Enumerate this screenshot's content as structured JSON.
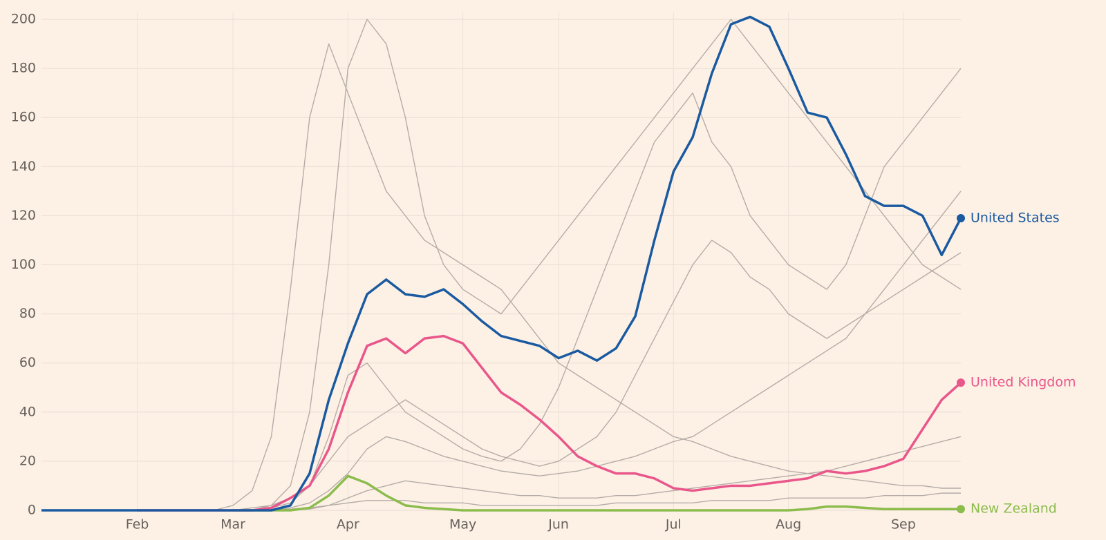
{
  "chart_data": {
    "type": "line",
    "categories": [
      null,
      null,
      null,
      null,
      null,
      "Feb",
      null,
      null,
      null,
      null,
      "Mar",
      null,
      null,
      null,
      null,
      null,
      "Apr",
      null,
      null,
      null,
      null,
      null,
      "May",
      null,
      null,
      null,
      null,
      "Jun",
      null,
      null,
      null,
      null,
      null,
      "Jul",
      null,
      null,
      null,
      null,
      null,
      "Aug",
      null,
      null,
      null,
      null,
      null,
      "Sep",
      null,
      null,
      null
    ],
    "ylim": [
      0,
      200
    ],
    "yticks": [
      0,
      20,
      40,
      60,
      80,
      100,
      120,
      140,
      160,
      180,
      200
    ],
    "grid": true,
    "series": [
      {
        "color": "#b5aca7",
        "values": [
          0,
          0,
          0,
          0,
          0,
          0,
          0,
          0,
          0,
          0,
          2,
          8,
          30,
          90,
          160,
          190,
          170,
          150,
          130,
          120,
          110,
          105,
          100,
          95,
          90,
          80,
          70,
          60,
          55,
          50,
          45,
          40,
          35,
          30,
          28,
          25,
          22,
          20,
          18,
          16,
          15,
          14,
          13,
          12,
          11,
          10,
          10,
          9,
          9
        ]
      },
      {
        "color": "#b5aca7",
        "values": [
          0,
          0,
          0,
          0,
          0,
          0,
          0,
          0,
          0,
          0,
          0,
          0,
          1,
          3,
          10,
          30,
          55,
          60,
          50,
          40,
          35,
          30,
          25,
          22,
          20,
          25,
          35,
          50,
          70,
          90,
          110,
          130,
          150,
          160,
          170,
          150,
          140,
          120,
          110,
          100,
          95,
          90,
          100,
          120,
          140,
          150,
          160,
          170,
          180
        ]
      },
      {
        "color": "#b5aca7",
        "values": [
          0,
          0,
          0,
          0,
          0,
          0,
          0,
          0,
          0,
          0,
          0,
          1,
          2,
          5,
          10,
          20,
          30,
          35,
          40,
          45,
          40,
          35,
          30,
          25,
          22,
          20,
          18,
          20,
          25,
          30,
          40,
          55,
          70,
          85,
          100,
          110,
          105,
          95,
          90,
          80,
          75,
          70,
          75,
          80,
          85,
          90,
          95,
          100,
          105
        ]
      },
      {
        "color": "#b5aca7",
        "values": [
          0,
          0,
          0,
          0,
          0,
          0,
          0,
          0,
          0,
          0,
          0,
          0,
          0,
          1,
          3,
          8,
          15,
          25,
          30,
          28,
          25,
          22,
          20,
          18,
          16,
          15,
          14,
          15,
          16,
          18,
          20,
          22,
          25,
          28,
          30,
          35,
          40,
          45,
          50,
          55,
          60,
          65,
          70,
          80,
          90,
          100,
          110,
          120,
          130
        ]
      },
      {
        "color": "#b5aca7",
        "values": [
          0,
          0,
          0,
          0,
          0,
          0,
          0,
          0,
          0,
          0,
          0,
          0,
          0,
          0,
          0.5,
          2,
          5,
          8,
          10,
          12,
          11,
          10,
          9,
          8,
          7,
          6,
          6,
          5,
          5,
          5,
          6,
          6,
          7,
          8,
          9,
          10,
          11,
          12,
          13,
          14,
          15,
          16,
          18,
          20,
          22,
          24,
          26,
          28,
          30
        ]
      },
      {
        "color": "#b5aca7",
        "values": [
          0,
          0,
          0,
          0,
          0,
          0,
          0,
          0,
          0,
          0,
          0,
          0,
          2,
          10,
          40,
          100,
          180,
          200,
          190,
          160,
          120,
          100,
          90,
          85,
          80,
          90,
          100,
          110,
          120,
          130,
          140,
          150,
          160,
          170,
          180,
          190,
          200,
          190,
          180,
          170,
          160,
          150,
          140,
          130,
          120,
          110,
          100,
          95,
          90
        ]
      },
      {
        "color": "#b5aca7",
        "values": [
          0,
          0,
          0,
          0,
          0,
          0,
          0,
          0,
          0,
          0,
          0,
          0,
          0,
          0.5,
          1,
          2,
          3,
          4,
          4,
          4,
          3,
          3,
          3,
          2,
          2,
          2,
          2,
          2,
          2,
          2,
          3,
          3,
          3,
          3,
          3,
          4,
          4,
          4,
          4,
          5,
          5,
          5,
          5,
          5,
          6,
          6,
          6,
          7,
          7
        ]
      },
      {
        "name": "New Zealand",
        "color": "#8cbc4c",
        "values": [
          null,
          null,
          null,
          null,
          null,
          null,
          null,
          null,
          null,
          null,
          0,
          0,
          0,
          0,
          1,
          6,
          14,
          11,
          6,
          2,
          1,
          0.5,
          0,
          0,
          0,
          0,
          0,
          0,
          0,
          0,
          0,
          0,
          0,
          0,
          0,
          0,
          0,
          0,
          0,
          0,
          0.5,
          1.5,
          1.5,
          1,
          0.5,
          0.5,
          0.5,
          0.5,
          0.5
        ]
      },
      {
        "name": "United Kingdom",
        "color": "#e9568a",
        "values": [
          null,
          null,
          null,
          null,
          null,
          0,
          0,
          0,
          0,
          0,
          0,
          0,
          1,
          5,
          10,
          25,
          48,
          67,
          70,
          64,
          70,
          71,
          68,
          58,
          48,
          43,
          37,
          30,
          22,
          18,
          15,
          15,
          13,
          9,
          8,
          9,
          10,
          10,
          11,
          12,
          13,
          16,
          15,
          16,
          18,
          21,
          33,
          45,
          52
        ]
      },
      {
        "name": "United States",
        "color": "#1a5aa0",
        "values": [
          0,
          0,
          0,
          0,
          0,
          0,
          0,
          0,
          0,
          0,
          0,
          0,
          0,
          2,
          15,
          45,
          68,
          88,
          94,
          88,
          87,
          90,
          84,
          77,
          71,
          69,
          67,
          62,
          65,
          61,
          66,
          79,
          110,
          138,
          152,
          178,
          198,
          201,
          197,
          180,
          162,
          160,
          145,
          128,
          124,
          124,
          120,
          104,
          119
        ]
      }
    ]
  }
}
